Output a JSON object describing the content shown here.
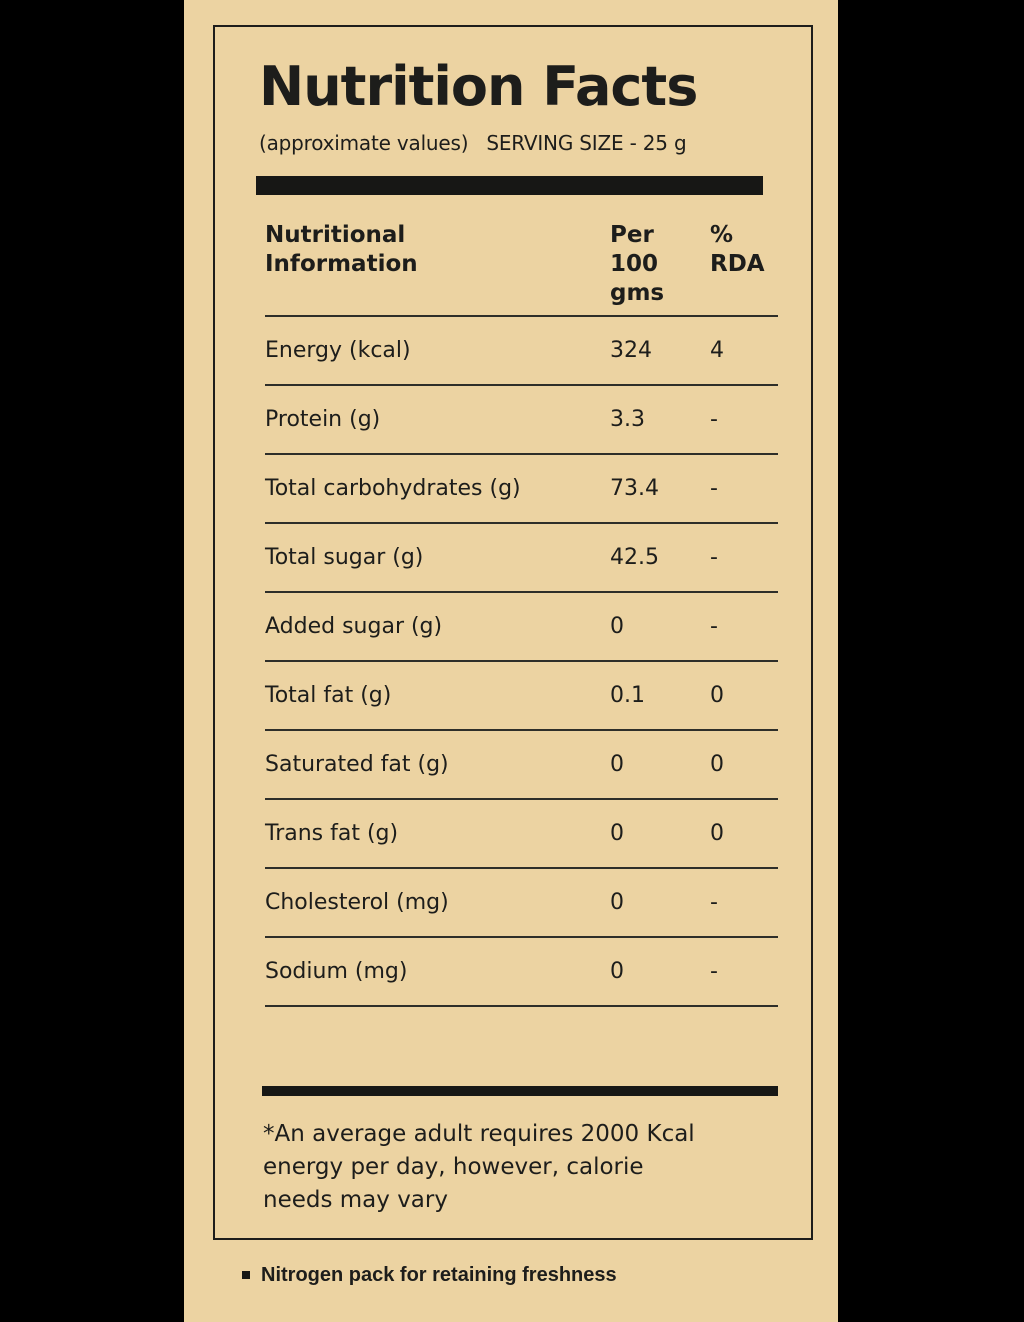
{
  "label": {
    "title": "Nutrition Facts",
    "subtitle_left": "(approximate values)",
    "subtitle_right": "SERVING SIZE - 25 g",
    "table": {
      "headers": {
        "info": "Nutritional\nInformation",
        "per100": "Per\n100\ngms",
        "rda": "%\nRDA"
      },
      "rows": [
        {
          "label": "Energy (kcal)",
          "per100": "324",
          "rda": "4"
        },
        {
          "label": "Protein (g)",
          "per100": "3.3",
          "rda": "-"
        },
        {
          "label": "Total carbohydrates (g)",
          "per100": "73.4",
          "rda": "-"
        },
        {
          "label": "Total sugar (g)",
          "per100": "42.5",
          "rda": "-"
        },
        {
          "label": "Added sugar (g)",
          "per100": "0",
          "rda": "-"
        },
        {
          "label": "Total fat (g)",
          "per100": "0.1",
          "rda": "0"
        },
        {
          "label": "Saturated fat (g)",
          "per100": "0",
          "rda": "0"
        },
        {
          "label": "Trans fat (g)",
          "per100": "0",
          "rda": "0"
        },
        {
          "label": "Cholesterol (mg)",
          "per100": "0",
          "rda": "-"
        },
        {
          "label": "Sodium (mg)",
          "per100": "0",
          "rda": "-"
        }
      ]
    },
    "footnote": "*An average adult requires 2000 Kcal\nenergy per day, however, calorie\nneeds may vary",
    "bullet_note": "Nitrogen pack for retaining freshness"
  },
  "colors": {
    "panel_background": "#ecd3a2",
    "text": "#1d1d1b",
    "bars": "#171715",
    "page_background": "#000000"
  }
}
